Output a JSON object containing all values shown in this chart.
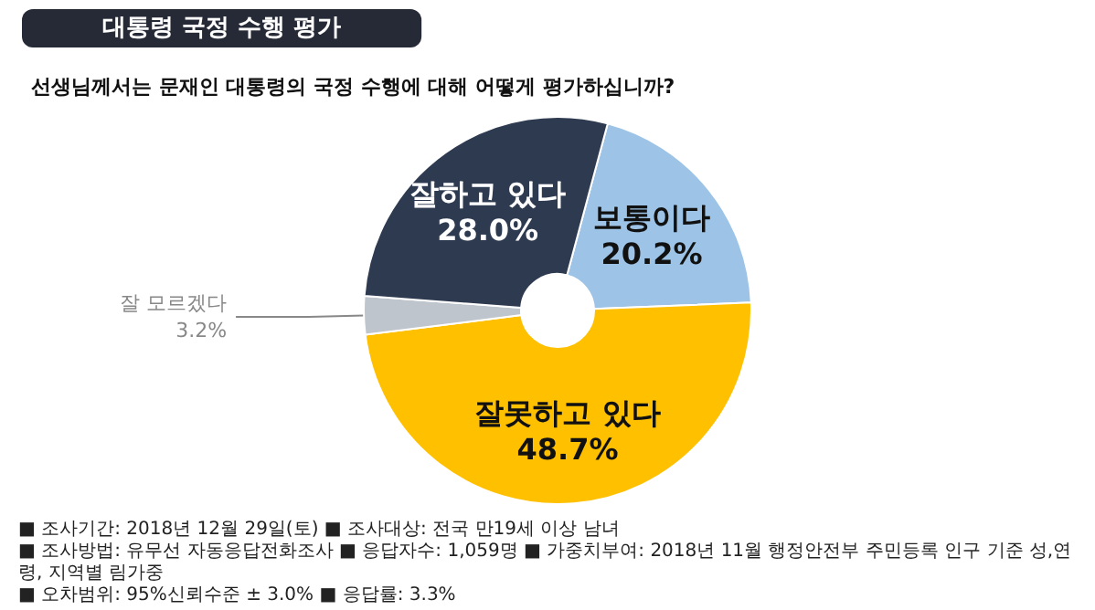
{
  "chart_data": {
    "type": "donut",
    "title": "대통령 국정 수행 평가",
    "subtitle": "선생님께서는 문재인 대통령의 국정 수행에 대해 어떻게 평가하십니까?",
    "categories": [
      "보통이다",
      "잘못하고 있다",
      "잘 모르겠다",
      "잘하고 있다"
    ],
    "values": [
      20.2,
      48.7,
      3.2,
      28.0
    ],
    "value_labels": [
      "20.2%",
      "48.7%",
      "3.2%",
      "28.0%"
    ],
    "colors": [
      "#9dc3e6",
      "#ffc000",
      "#bfc5cc",
      "#2e3a50"
    ],
    "legend": false,
    "annotations": [
      "■ 조사기간: 2018년 12월 29일(토) ■ 조사대상: 전국 만19세 이상 남녀",
      "■ 조사방법: 유무선 자동응답전화조사 ■ 응답자수: 1,059명 ■ 가중치부여: 2018년 11월 행정안전부 주민등록 인구 기준 성,연령, 지역별 림가중",
      "■ 오차범위: 95%신뢰수준 ± 3.0% ■ 응답률: 3.3%"
    ]
  }
}
